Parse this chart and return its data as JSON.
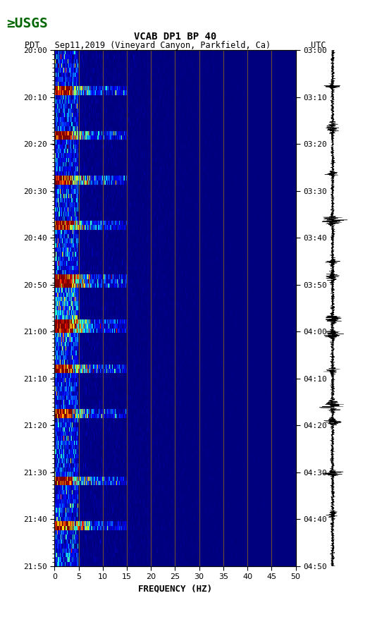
{
  "title_line1": "VCAB DP1 BP 40",
  "title_line2": "PDT   Sep11,2019 (Vineyard Canyon, Parkfield, Ca)        UTC",
  "xlabel": "FREQUENCY (HZ)",
  "freq_min": 0,
  "freq_max": 50,
  "freq_ticks": [
    0,
    5,
    10,
    15,
    20,
    25,
    30,
    35,
    40,
    45,
    50
  ],
  "left_yticks": [
    "20:00",
    "20:10",
    "20:20",
    "20:30",
    "20:40",
    "20:50",
    "21:00",
    "21:10",
    "21:20",
    "21:30",
    "21:40",
    "21:50"
  ],
  "right_yticks": [
    "03:00",
    "03:10",
    "03:20",
    "03:30",
    "03:40",
    "03:50",
    "04:00",
    "04:10",
    "04:20",
    "04:30",
    "04:40",
    "04:50"
  ],
  "n_time_bins": 115,
  "n_freq_bins": 400,
  "spectrogram_colormap": "jet",
  "vertical_line_color": "#8B6914",
  "vertical_line_freqs": [
    5,
    10,
    15,
    20,
    25,
    30,
    35,
    40,
    45
  ],
  "fig_width": 5.52,
  "fig_height": 8.92,
  "logo_color": "#006400"
}
